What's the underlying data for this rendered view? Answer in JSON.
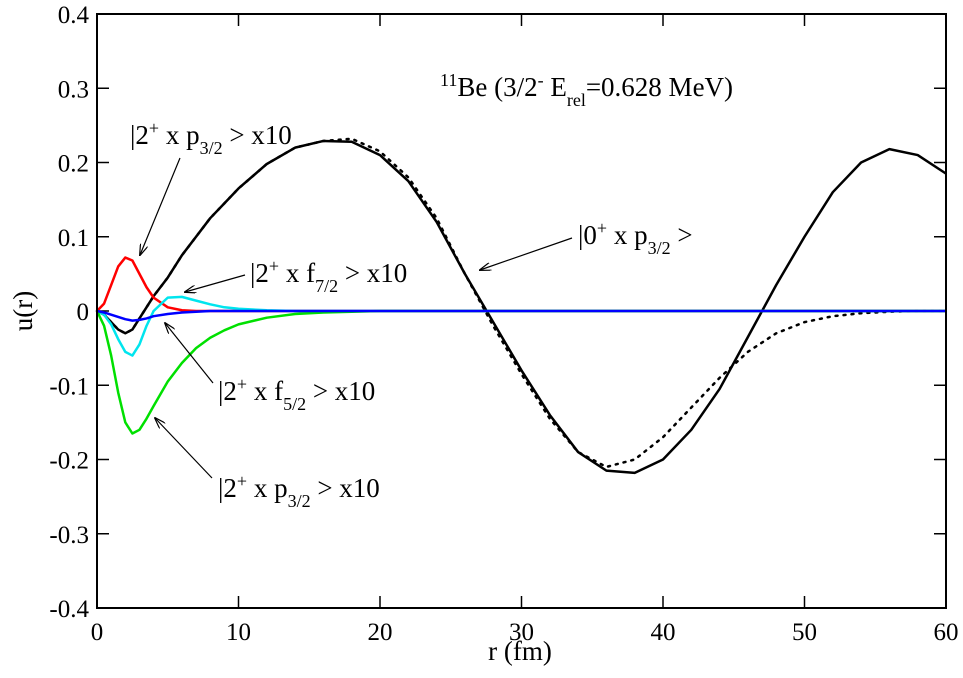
{
  "chart_data": {
    "type": "line",
    "xlabel": "r (fm)",
    "ylabel": "u(r)",
    "title": [
      "11",
      "Be (3/2",
      "-",
      " E",
      "rel",
      "=0.628 MeV)"
    ],
    "annotations": [
      [
        "|2",
        "+",
        " x p",
        "3/2",
        " > x10"
      ],
      [
        "|2",
        "+",
        " x f",
        "7/2",
        " > x10"
      ],
      [
        "|0",
        "+",
        " x p",
        "3/2",
        " >"
      ],
      [
        "|2",
        "+",
        " x f",
        "5/2",
        " > x10"
      ],
      [
        "|2",
        "+",
        " x p",
        "3/2",
        " > x10"
      ]
    ],
    "xlim": [
      0,
      60
    ],
    "ylim": [
      -0.4,
      0.4
    ],
    "xticks": [
      0,
      10,
      20,
      30,
      40,
      50,
      60
    ],
    "yticks": [
      -0.4,
      -0.3,
      -0.2,
      -0.1,
      0,
      0.1,
      0.2,
      0.3,
      0.4
    ],
    "x": [
      0,
      0.5,
      1,
      1.5,
      2,
      2.5,
      3,
      3.5,
      4,
      5,
      6,
      7,
      8,
      9,
      10,
      12,
      14,
      16,
      18,
      20,
      22,
      24,
      26,
      28,
      30,
      32,
      34,
      36,
      38,
      40,
      42,
      44,
      46,
      48,
      50,
      52,
      54,
      56,
      58,
      60
    ],
    "series": [
      {
        "color": "#000000",
        "dash": "solid",
        "values": [
          0,
          -0.005,
          -0.015,
          -0.025,
          -0.03,
          -0.025,
          -0.01,
          0.005,
          0.02,
          0.045,
          0.075,
          0.1,
          0.125,
          0.145,
          0.165,
          0.198,
          0.22,
          0.229,
          0.228,
          0.21,
          0.175,
          0.12,
          0.05,
          -0.015,
          -0.08,
          -0.14,
          -0.19,
          -0.215,
          -0.218,
          -0.2,
          -0.16,
          -0.105,
          -0.035,
          0.035,
          0.1,
          0.16,
          0.2,
          0.218,
          0.21,
          0.185
        ]
      },
      {
        "color": "#000000",
        "dash": "dotted",
        "values": [
          0,
          -0.005,
          -0.015,
          -0.025,
          -0.03,
          -0.025,
          -0.01,
          0.005,
          0.02,
          0.045,
          0.075,
          0.1,
          0.125,
          0.145,
          0.165,
          0.198,
          0.22,
          0.229,
          0.232,
          0.215,
          0.18,
          0.125,
          0.05,
          -0.02,
          -0.085,
          -0.145,
          -0.19,
          -0.21,
          -0.2,
          -0.17,
          -0.13,
          -0.09,
          -0.055,
          -0.03,
          -0.015,
          -0.007,
          -0.003,
          -0.001,
          0,
          0
        ]
      },
      {
        "color": "#ff0000",
        "dash": "solid",
        "values": [
          0,
          0.01,
          0.035,
          0.06,
          0.072,
          0.068,
          0.05,
          0.032,
          0.018,
          0.005,
          0.001,
          0,
          0,
          0,
          0,
          0,
          0,
          0,
          0,
          0,
          0,
          0,
          0,
          0,
          0,
          0,
          0,
          0,
          0,
          0,
          0,
          0,
          0,
          0,
          0,
          0,
          0,
          0,
          0,
          0
        ]
      },
      {
        "color": "#00e5ee",
        "dash": "solid",
        "values": [
          0,
          -0.005,
          -0.018,
          -0.038,
          -0.055,
          -0.06,
          -0.045,
          -0.02,
          0,
          0.018,
          0.019,
          0.014,
          0.009,
          0.005,
          0.003,
          0.001,
          0,
          0,
          0,
          0,
          0,
          0,
          0,
          0,
          0,
          0,
          0,
          0,
          0,
          0,
          0,
          0,
          0,
          0,
          0,
          0,
          0,
          0,
          0,
          0
        ]
      },
      {
        "color": "#00e000",
        "dash": "solid",
        "values": [
          0,
          -0.02,
          -0.06,
          -0.11,
          -0.15,
          -0.165,
          -0.16,
          -0.145,
          -0.128,
          -0.095,
          -0.07,
          -0.05,
          -0.036,
          -0.026,
          -0.018,
          -0.009,
          -0.004,
          -0.002,
          -0.001,
          0,
          0,
          0,
          0,
          0,
          0,
          0,
          0,
          0,
          0,
          0,
          0,
          0,
          0,
          0,
          0,
          0,
          0,
          0,
          0,
          0
        ]
      },
      {
        "color": "#0000ff",
        "dash": "solid",
        "values": [
          0,
          -0.002,
          -0.005,
          -0.008,
          -0.011,
          -0.013,
          -0.012,
          -0.01,
          -0.007,
          -0.004,
          -0.002,
          -0.001,
          0,
          0,
          0,
          0,
          0,
          0,
          0,
          0,
          0,
          0,
          0,
          0,
          0,
          0,
          0,
          0,
          0,
          0,
          0,
          0,
          0,
          0,
          0,
          0,
          0,
          0,
          0,
          0
        ]
      }
    ]
  }
}
